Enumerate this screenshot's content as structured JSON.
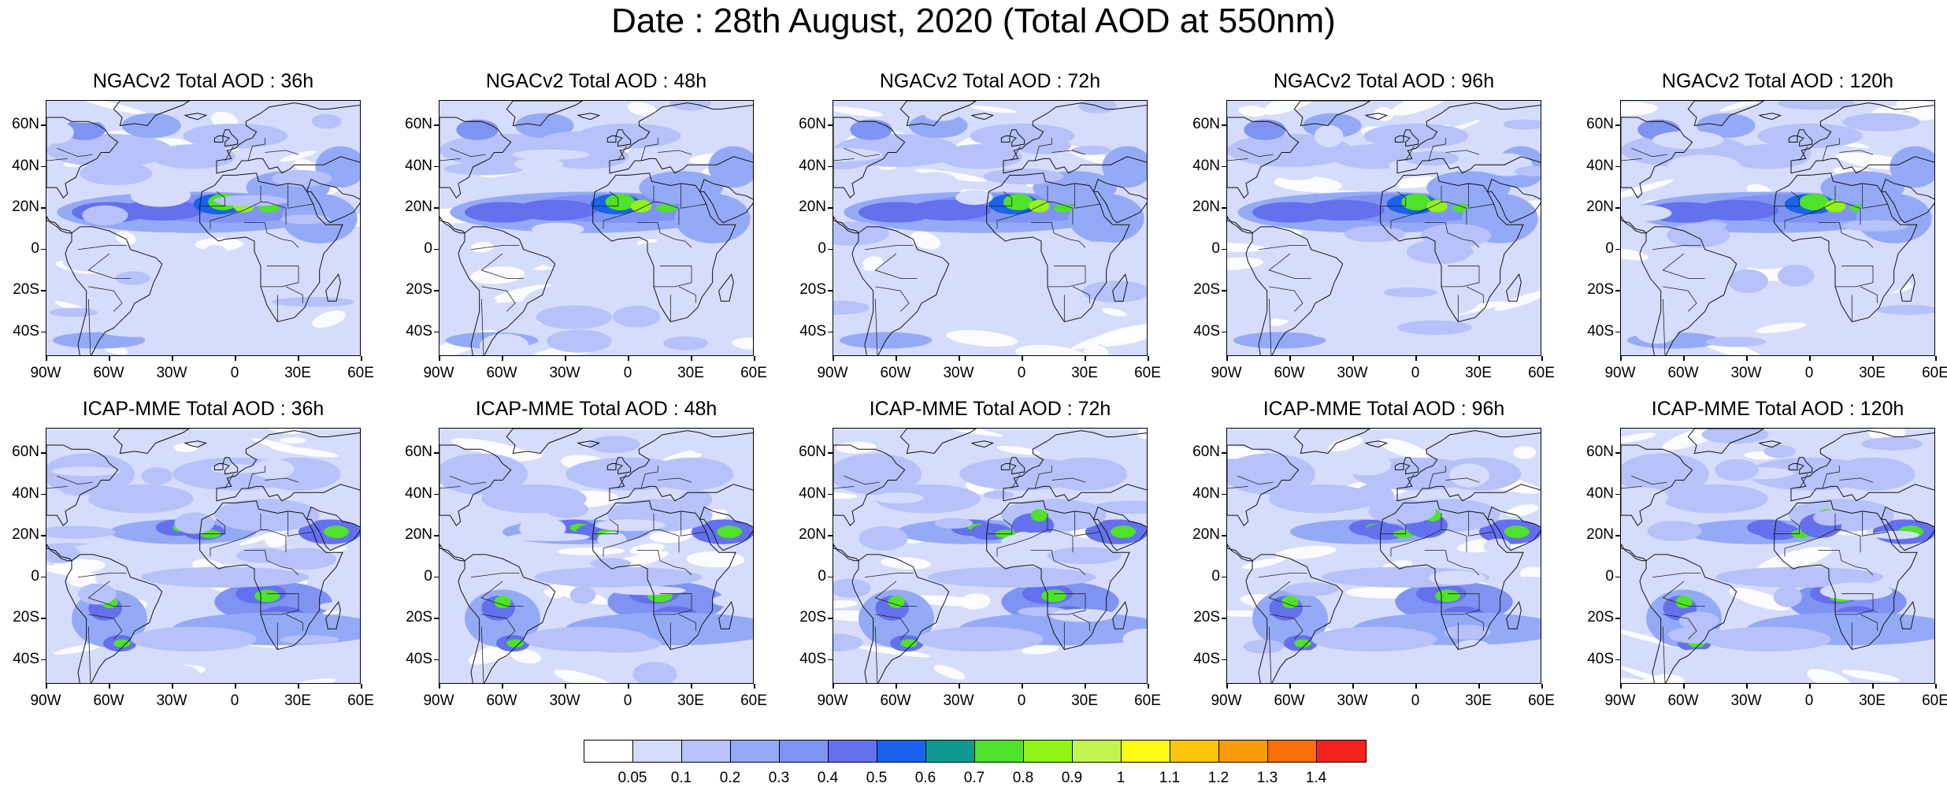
{
  "title": "Date : 28th August, 2020 (Total AOD at 550nm)",
  "rows": [
    {
      "model": "NGACv2",
      "panels": [
        {
          "title": "NGACv2 Total AOD : 36h",
          "lead": "36h"
        },
        {
          "title": "NGACv2 Total AOD : 48h",
          "lead": "48h"
        },
        {
          "title": "NGACv2 Total AOD : 72h",
          "lead": "72h"
        },
        {
          "title": "NGACv2 Total AOD : 96h",
          "lead": "96h"
        },
        {
          "title": "NGACv2 Total AOD : 120h",
          "lead": "120h"
        }
      ]
    },
    {
      "model": "ICAP-MME",
      "panels": [
        {
          "title": "ICAP-MME Total AOD : 36h",
          "lead": "36h"
        },
        {
          "title": "ICAP-MME Total AOD : 48h",
          "lead": "48h"
        },
        {
          "title": "ICAP-MME Total AOD : 72h",
          "lead": "72h"
        },
        {
          "title": "ICAP-MME Total AOD : 96h",
          "lead": "96h"
        },
        {
          "title": "ICAP-MME Total AOD : 120h",
          "lead": "120h"
        }
      ]
    }
  ],
  "map_extent": {
    "lon": [
      -90,
      60
    ],
    "lat": [
      -52,
      72
    ]
  },
  "lat_ticks": [
    {
      "value": 60,
      "label": "60N"
    },
    {
      "value": 40,
      "label": "40N"
    },
    {
      "value": 20,
      "label": "20N"
    },
    {
      "value": 0,
      "label": "0"
    },
    {
      "value": -20,
      "label": "20S"
    },
    {
      "value": -40,
      "label": "40S"
    }
  ],
  "lon_ticks": [
    {
      "value": -90,
      "label": "90W"
    },
    {
      "value": -60,
      "label": "60W"
    },
    {
      "value": -30,
      "label": "30W"
    },
    {
      "value": 0,
      "label": "0"
    },
    {
      "value": 30,
      "label": "30E"
    },
    {
      "value": 60,
      "label": "60E"
    }
  ],
  "colorbar": {
    "colors": [
      "#ffffff",
      "#d6dcfb",
      "#b6c2f9",
      "#95aaf7",
      "#7f93f2",
      "#6470ee",
      "#1a63ec",
      "#0e9a91",
      "#4ee22a",
      "#92f219",
      "#c3f550",
      "#fdfb14",
      "#fdc50b",
      "#fb9b0a",
      "#f86f0c",
      "#f4221c"
    ],
    "labels": [
      "0.05",
      "0.1",
      "0.2",
      "0.3",
      "0.4",
      "0.5",
      "0.6",
      "0.7",
      "0.8",
      "0.9",
      "1",
      "1.1",
      "1.2",
      "1.3",
      "1.4"
    ]
  }
}
